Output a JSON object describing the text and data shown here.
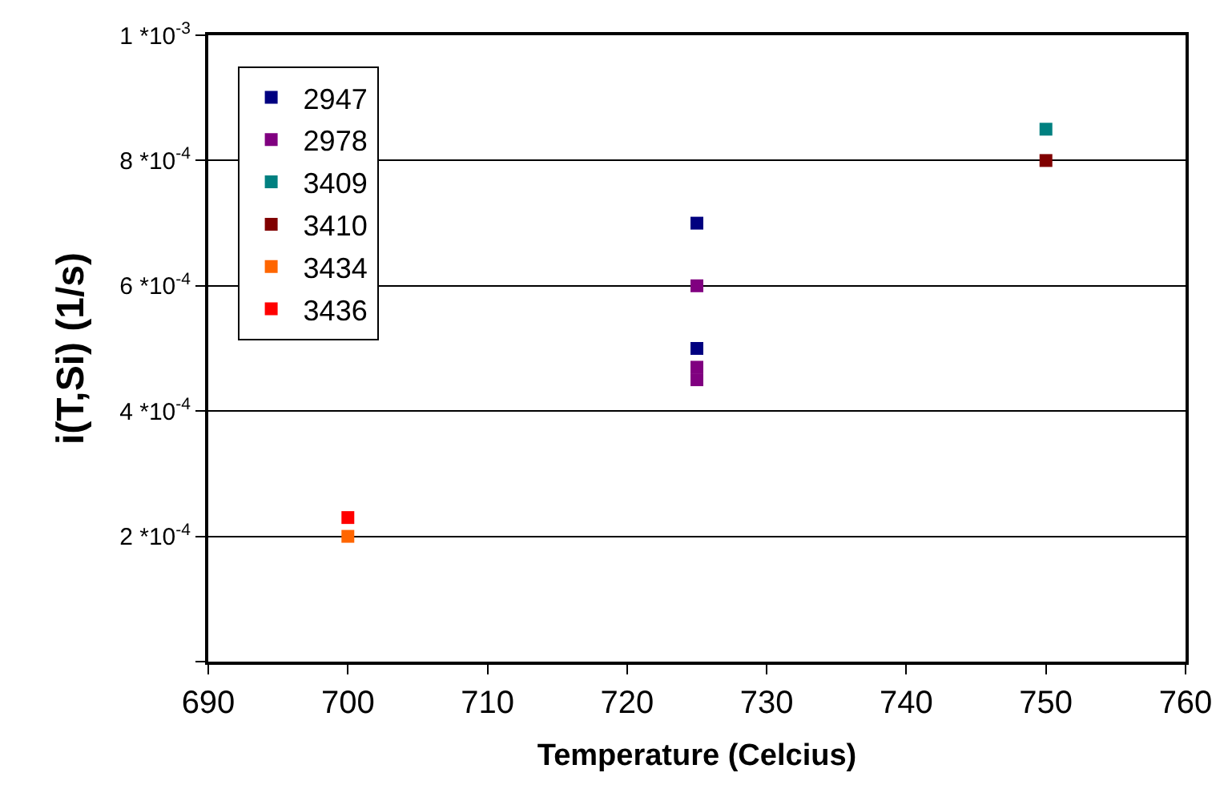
{
  "chart_data": {
    "type": "scatter",
    "xlabel": "Temperature (Celcius)",
    "ylabel": "i(T,Si) (1/s)",
    "series": [
      {
        "name": "2947",
        "color": "#000080",
        "x": [
          725,
          725
        ],
        "values": [
          0.0007,
          0.0005
        ]
      },
      {
        "name": "2978",
        "color": "#800080",
        "x": [
          725,
          725,
          725
        ],
        "values": [
          0.0006,
          0.00047,
          0.00045
        ]
      },
      {
        "name": "3409",
        "color": "#008080",
        "x": [
          750
        ],
        "values": [
          0.00085
        ]
      },
      {
        "name": "3410",
        "color": "#800000",
        "x": [
          750
        ],
        "values": [
          0.0008
        ]
      },
      {
        "name": "3434",
        "color": "#ff6600",
        "x": [
          700
        ],
        "values": [
          0.0002
        ]
      },
      {
        "name": "3436",
        "color": "#ff0000",
        "x": [
          700
        ],
        "values": [
          0.00023
        ]
      }
    ],
    "xlim": [
      690,
      760
    ],
    "xticks": [
      690,
      700,
      710,
      720,
      730,
      740,
      750,
      760
    ],
    "ylim": [
      0,
      0.001
    ],
    "yticks": [
      {
        "value": 0,
        "label": null
      },
      {
        "value": 0.0002,
        "label": "2 *10$^{-4}$"
      },
      {
        "value": 0.0004,
        "label": "4 *10$^{-4}$"
      },
      {
        "value": 0.0006,
        "label": "6 *10$^{-4}$"
      },
      {
        "value": 0.0008,
        "label": "8 *10$^{-4}$"
      },
      {
        "value": 0.001,
        "label": "1 *10$^{-3}$"
      }
    ],
    "grid": "y",
    "legend": "top left",
    "marker": "square"
  }
}
